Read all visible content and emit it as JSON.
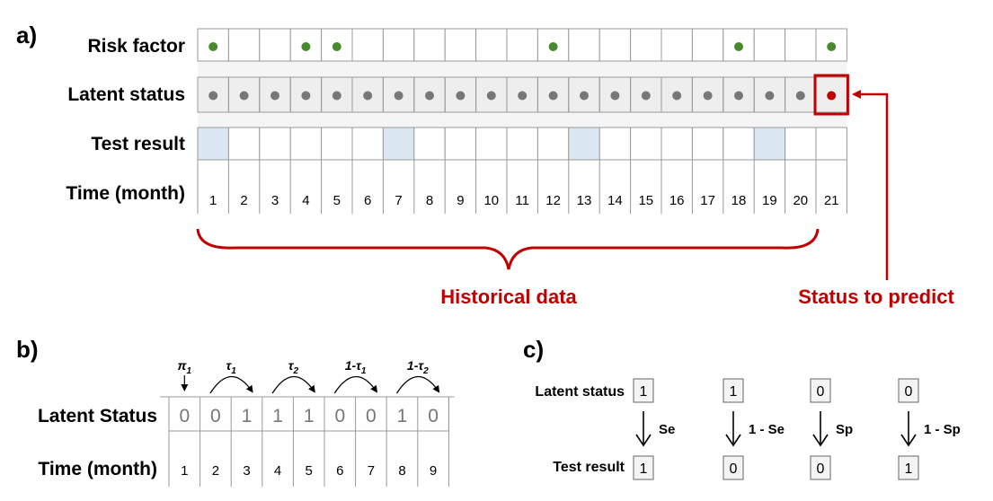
{
  "colors": {
    "accent": "#c00000",
    "risk_dot": "#4a8a2e",
    "latent_dot": "#777777",
    "test_fill": "#dbe8f4",
    "latent_band": "#eeeeee"
  },
  "panel_a": {
    "label": "a)",
    "rows": {
      "risk": "Risk factor",
      "latent": "Latent status",
      "test": "Test result",
      "time": "Time (month)"
    },
    "months": [
      1,
      2,
      3,
      4,
      5,
      6,
      7,
      8,
      9,
      10,
      11,
      12,
      13,
      14,
      15,
      16,
      17,
      18,
      19,
      20,
      21
    ],
    "risk_factor_months": [
      1,
      4,
      5,
      12,
      18,
      21
    ],
    "test_result_months": [
      1,
      7,
      13,
      19
    ],
    "predicted_month": 21,
    "historical_label": "Historical data",
    "predict_label": "Status to predict"
  },
  "panel_b": {
    "label": "b)",
    "row_status": "Latent Status",
    "row_time": "Time (month)",
    "status_values": [
      "0",
      "0",
      "1",
      "1",
      "1",
      "0",
      "0",
      "1",
      "0"
    ],
    "times": [
      "1",
      "2",
      "3",
      "4",
      "5",
      "6",
      "7",
      "8",
      "9"
    ],
    "initial_param": {
      "base": "π",
      "sub": "1"
    },
    "transitions": [
      {
        "pre": "",
        "base": "τ",
        "sub": "1"
      },
      {
        "pre": "",
        "base": "τ",
        "sub": "2"
      },
      {
        "pre": "1-",
        "base": "τ",
        "sub": "1"
      },
      {
        "pre": "1-",
        "base": "τ",
        "sub": "2"
      }
    ]
  },
  "panel_c": {
    "label": "c)",
    "row_latent": "Latent status",
    "row_test": "Test result",
    "cases": [
      {
        "latent": "1",
        "test": "1",
        "arrow_label": "Se"
      },
      {
        "latent": "1",
        "test": "0",
        "arrow_label": "1 - Se"
      },
      {
        "latent": "0",
        "test": "0",
        "arrow_label": "Sp"
      },
      {
        "latent": "0",
        "test": "1",
        "arrow_label": "1 - Sp"
      }
    ]
  }
}
